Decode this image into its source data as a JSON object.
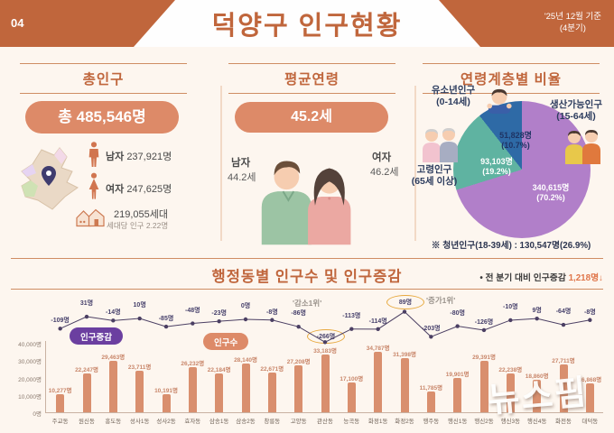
{
  "header": {
    "page_no": "04",
    "title": "덕양구 인구현황",
    "date_line1": "'25년 12월 기준",
    "date_line2": "(4분기)"
  },
  "total": {
    "title": "총인구",
    "badge": "총 485,546명",
    "male_label": "남자",
    "male_value": "237,921명",
    "female_label": "여자",
    "female_value": "247,625명",
    "households": "219,055세대",
    "per_household": "세대당 인구 2.22명"
  },
  "age": {
    "title": "평균연령",
    "badge": "45.2세",
    "male_label": "남자",
    "male_value": "44.2세",
    "female_label": "여자",
    "female_value": "46.2세"
  },
  "age_groups": {
    "title": "연령계층별 비율",
    "slices": [
      {
        "name": "생산가능인구",
        "range": "(15-64세)",
        "count": "340,615명",
        "percent": "(70.2%)",
        "pct": 70.2,
        "color": "#b17fc9"
      },
      {
        "name": "고령인구",
        "range": "(65세 이상)",
        "count": "93,103명",
        "percent": "(19.2%)",
        "pct": 19.2,
        "color": "#5fb3a1"
      },
      {
        "name": "유소년인구",
        "range": "(0-14세)",
        "count": "51,828명",
        "percent": "(10.7%)",
        "pct": 10.7,
        "color": "#2e6aa6"
      }
    ],
    "footnote": "※ 청년인구(18-39세) : 130,547명(26.9%)"
  },
  "dong_section": {
    "title": "행정동별 인구수 및 인구증감",
    "note_prefix": "• 전 분기 대비 인구증감",
    "note_value": "1,218명↓",
    "legend_change": "인구증감",
    "legend_pop": "인구수",
    "rank_decrease": "'감소1위'",
    "rank_increase": "'증가1위'"
  },
  "chart_data": {
    "type": "bar+line",
    "title": "행정동별 인구수 및 인구증감",
    "categories": [
      "주교동",
      "원신동",
      "흥도동",
      "성사1동",
      "성사2동",
      "효자동",
      "삼송1동",
      "삼송2동",
      "창릉동",
      "고양동",
      "관산동",
      "능곡동",
      "화정1동",
      "화정2동",
      "행주동",
      "행신1동",
      "행신2동",
      "행신3동",
      "행신4동",
      "화전동",
      "대덕동"
    ],
    "series": [
      {
        "name": "인구수",
        "type": "bar",
        "color": "#d98f6e",
        "values": [
          10277,
          22247,
          29463,
          23711,
          10191,
          26232,
          22184,
          28140,
          22671,
          27208,
          33183,
          17100,
          34787,
          31398,
          11785,
          19901,
          29391,
          22238,
          18860,
          27711,
          16868
        ],
        "labels": [
          "10,277명",
          "22,247명",
          "29,463명",
          "23,711명",
          "10,191명",
          "26,232명",
          "22,184명",
          "28,140명",
          "22,671명",
          "27,208명",
          "33,183명",
          "17,100명",
          "34,787명",
          "31,398명",
          "11,785명",
          "19,901명",
          "29,391명",
          "22,238명",
          "18,860명",
          "27,711명",
          "16,868명"
        ]
      },
      {
        "name": "인구증감",
        "type": "line",
        "color": "#4b3f63",
        "values": [
          -109,
          31,
          -14,
          10,
          -85,
          -48,
          -23,
          0,
          -8,
          -86,
          -266,
          -113,
          -114,
          89,
          -203,
          -80,
          -126,
          -10,
          9,
          -64,
          -8
        ],
        "labels": [
          "-109명",
          "31명",
          "-14명",
          "10명",
          "-85명",
          "-48명",
          "-23명",
          "0명",
          "-8명",
          "-86명",
          "-266명",
          "-113명",
          "-114명",
          "89명",
          "-203명",
          "-80명",
          "-126명",
          "-10명",
          "9명",
          "-64명",
          "-8명"
        ],
        "circled_indices": [
          10,
          13
        ]
      }
    ],
    "y_ticks": [
      "40,000명",
      "30,000명",
      "20,000명",
      "10,000명",
      "0명"
    ],
    "y_max": 40000,
    "ylim": [
      0,
      40000
    ],
    "legend_position": "top-left",
    "grid": false
  },
  "watermark": "뉴스핌"
}
